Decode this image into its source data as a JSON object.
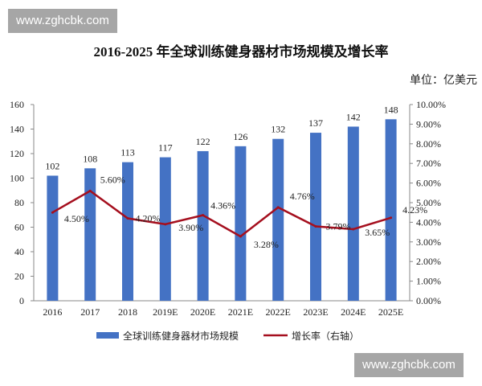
{
  "watermark": "www.zghcbk.com",
  "chart_data": {
    "type": "bar+line",
    "title": "2016-2025 年全球训练健身器材市场规模及增长率",
    "unit": "单位：亿美元",
    "categories": [
      "2016",
      "2017",
      "2018",
      "2019E",
      "2020E",
      "2021E",
      "2022E",
      "2023E",
      "2024E",
      "2025E"
    ],
    "series": [
      {
        "name": "全球训练健身器材市场规模",
        "type": "bar",
        "axis": "left",
        "color": "#4472c4",
        "values": [
          102,
          108,
          113,
          117,
          122,
          126,
          132,
          137,
          142,
          148
        ]
      },
      {
        "name": "增长率（右轴）",
        "type": "line",
        "axis": "right",
        "color": "#a50f1e",
        "values": [
          4.5,
          5.6,
          4.2,
          3.9,
          4.36,
          3.28,
          4.76,
          3.79,
          3.65,
          4.23
        ],
        "labels": [
          "4.50%",
          "5.60%",
          "4.20%",
          "3.90%",
          "4.36%",
          "3.28%",
          "4.76%",
          "3.79%",
          "3.65%",
          "4.23%"
        ]
      }
    ],
    "left_axis": {
      "range": [
        0,
        160
      ],
      "ticks": [
        "0",
        "20",
        "40",
        "60",
        "80",
        "100",
        "120",
        "140",
        "160"
      ]
    },
    "right_axis": {
      "range": [
        0,
        10
      ],
      "ticks": [
        "0.00%",
        "1.00%",
        "2.00%",
        "3.00%",
        "4.00%",
        "5.00%",
        "6.00%",
        "7.00%",
        "8.00%",
        "9.00%",
        "10.00%"
      ]
    },
    "grid": false,
    "legend": "bottom"
  }
}
